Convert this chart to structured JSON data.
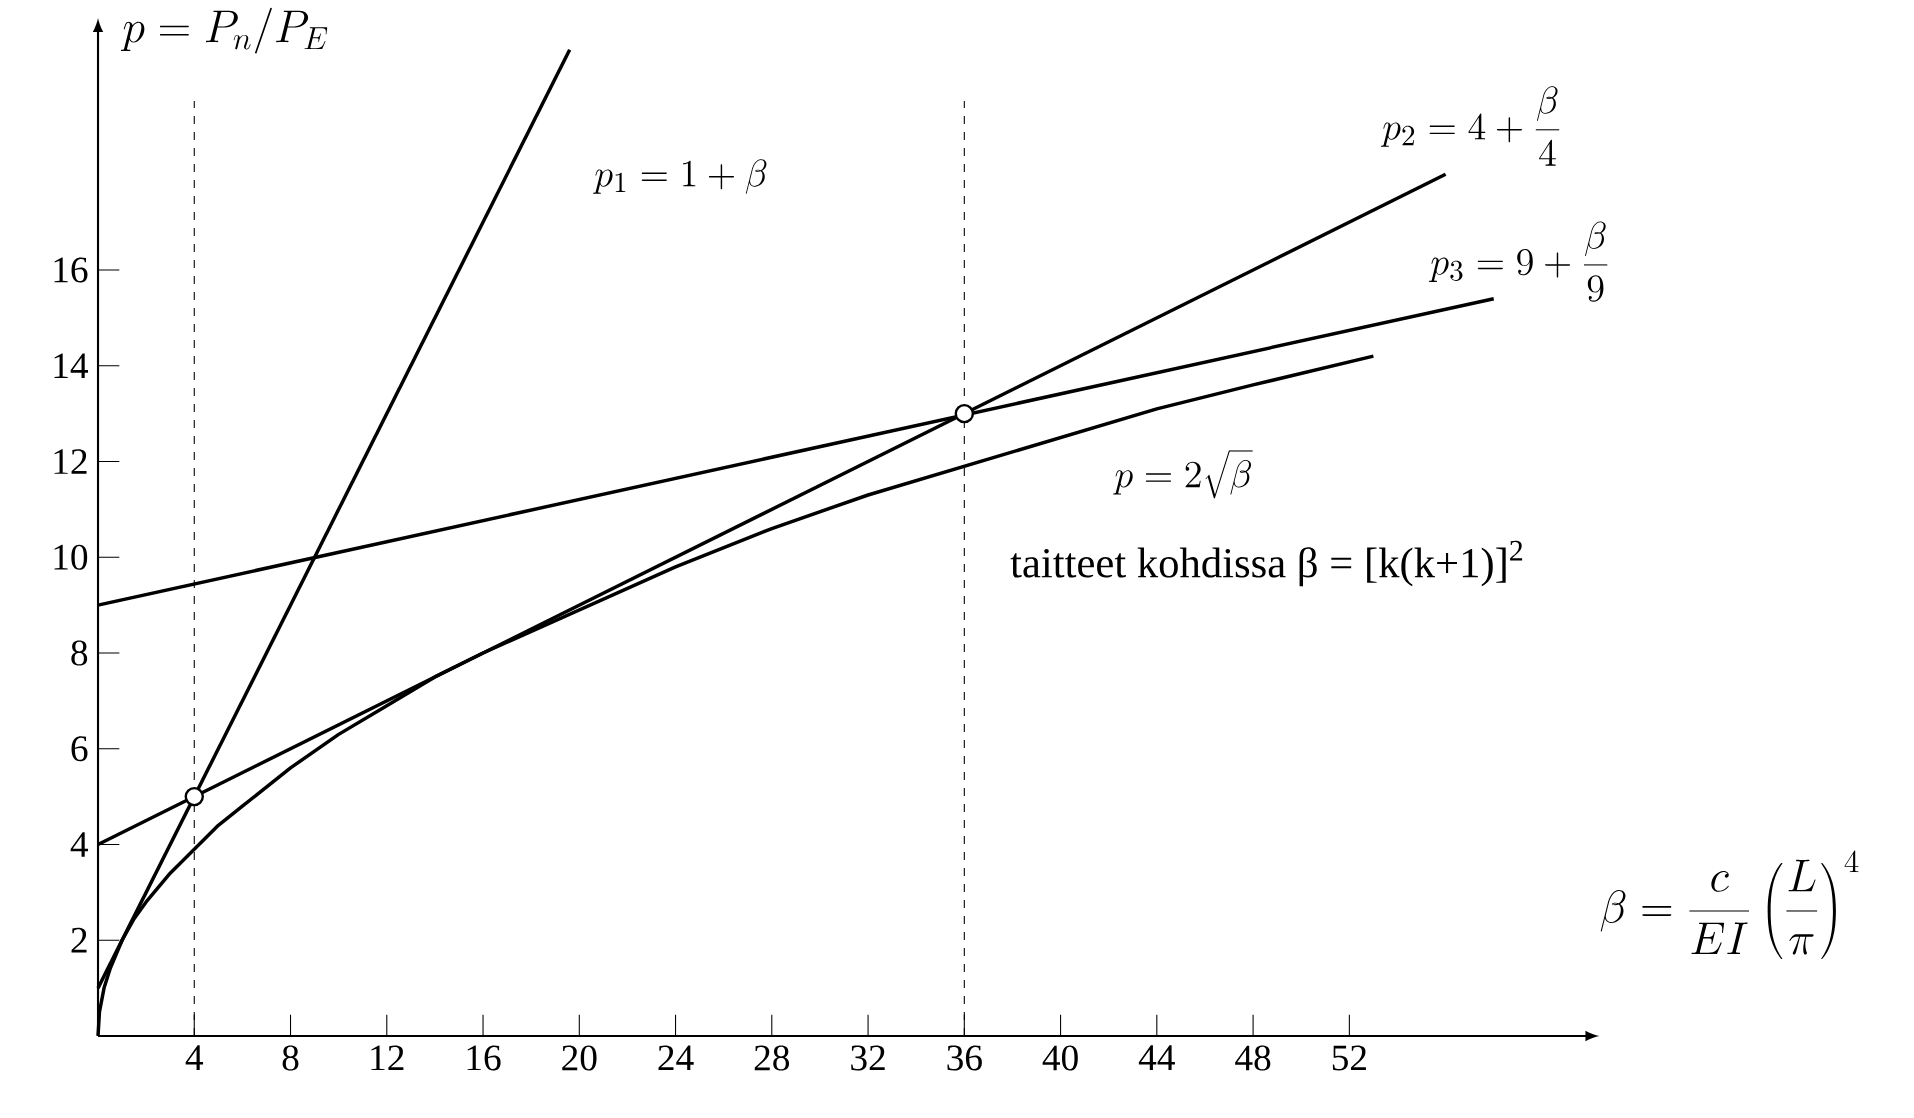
{
  "chart_data": {
    "type": "line",
    "xlabel": "\\beta = \\frac{c}{EI}\\left(\\frac{L}{\\pi}\\right)^4",
    "ylabel": "p = P_n/P_E",
    "xlim": [
      0,
      62
    ],
    "ylim": [
      0,
      21
    ],
    "xticks": [
      4,
      8,
      12,
      16,
      20,
      24,
      28,
      32,
      36,
      40,
      44,
      48,
      52
    ],
    "yticks": [
      2,
      4,
      6,
      8,
      10,
      12,
      14,
      16
    ],
    "line_style": "solid",
    "series": [
      {
        "name": "p_1 = 1 + \\beta",
        "color": "#000000",
        "x": [
          0,
          19.6
        ],
        "values": [
          1,
          20.6
        ]
      },
      {
        "name": "p_2 = 4 + \\frac{\\beta}{4}",
        "color": "#000000",
        "x": [
          0,
          56
        ],
        "values": [
          4,
          18
        ]
      },
      {
        "name": "p_3 = 9 + \\frac{\\beta}{9}",
        "color": "#000000",
        "x": [
          0,
          58
        ],
        "values": [
          9,
          15.4
        ]
      },
      {
        "name": "p = 2\\sqrt{\\beta}",
        "color": "#000000",
        "x": [
          0,
          0.06,
          0.25,
          0.5,
          1,
          1.5,
          2,
          3,
          4,
          5,
          6,
          8,
          10,
          12,
          14,
          16,
          20,
          24,
          28,
          32,
          36,
          40,
          44,
          48,
          53
        ],
        "values": [
          0,
          0.5,
          1,
          1.4,
          2,
          2.45,
          2.8,
          3.4,
          3.9,
          4.4,
          4.8,
          5.6,
          6.3,
          6.9,
          7.5,
          8,
          8.9,
          9.8,
          10.6,
          11.3,
          11.9,
          12.5,
          13.1,
          13.6,
          14.2
        ]
      },
      {
        "type": "scatter",
        "marker": "circle",
        "color": "#000000",
        "x": [
          4,
          36
        ],
        "values": [
          5,
          13
        ]
      }
    ],
    "ref_lines": [
      {
        "axis": "x",
        "value": 4,
        "line_style": "dashed"
      },
      {
        "axis": "x",
        "value": 36,
        "line_style": "dashed"
      }
    ],
    "annotations": [
      "taitteet kohdissa β = [k(k+1)]$^{2}$"
    ]
  }
}
